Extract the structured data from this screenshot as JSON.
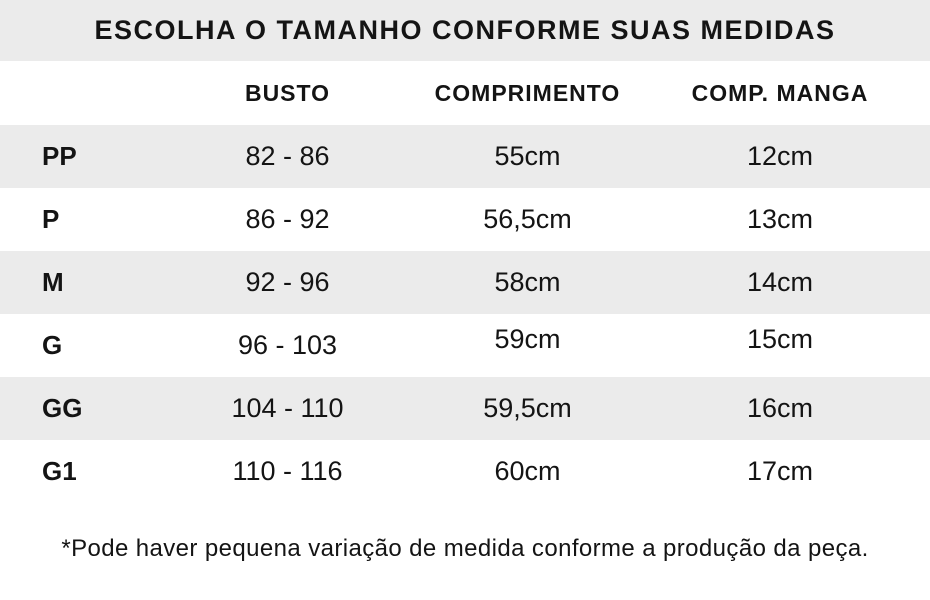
{
  "title": "ESCOLHA O TAMANHO CONFORME SUAS MEDIDAS",
  "footnote": "*Pode haver pequena variação de medida conforme a produção da peça.",
  "colors": {
    "band_gray": "#ebebeb",
    "background": "#ffffff",
    "text": "#141414"
  },
  "chart_data": {
    "type": "table",
    "title": "ESCOLHA O TAMANHO CONFORME SUAS MEDIDAS",
    "columns": [
      "",
      "BUSTO",
      "COMPRIMENTO",
      "COMP. MANGA"
    ],
    "rows": [
      [
        "PP",
        "82 - 86",
        "55cm",
        "12cm"
      ],
      [
        "P",
        "86 - 92",
        "56,5cm",
        "13cm"
      ],
      [
        "M",
        "92 - 96",
        "58cm",
        "14cm"
      ],
      [
        "G",
        "96 - 103",
        "59cm",
        "15cm"
      ],
      [
        "GG",
        "104 - 110",
        "59,5cm",
        "16cm"
      ],
      [
        "G1",
        "110 - 116",
        "60cm",
        "17cm"
      ]
    ],
    "footnote": "*Pode haver pequena variação de medida conforme a produção da peça.",
    "layout_hints": {
      "row_shading": "alternating, gray starts on first data row",
      "first_column_align": "left",
      "value_columns_align": "center"
    }
  }
}
